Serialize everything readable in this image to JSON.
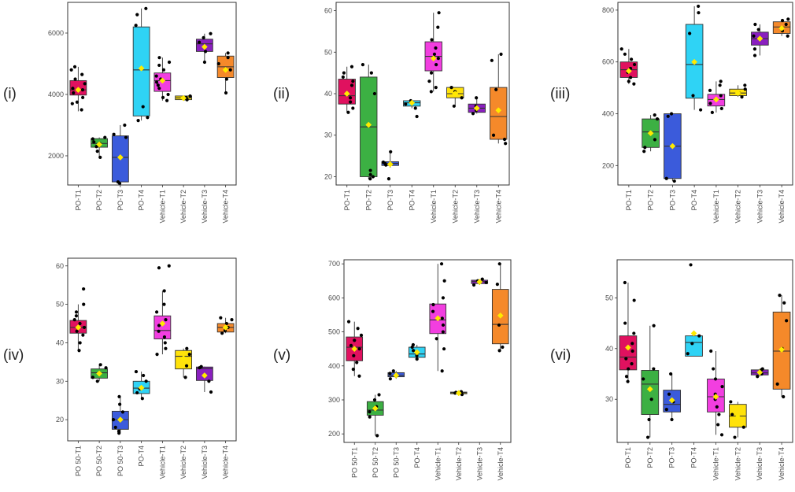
{
  "colors": {
    "T1": "#e0115f",
    "T2": "#3cb043",
    "T3": "#3b5bdb",
    "T4": "#2fd3f5",
    "VT1": "#f23ee0",
    "VT2": "#ffe20a",
    "VT3": "#8a1fbf",
    "VT4": "#f5892a",
    "mean": "#ffea00"
  },
  "chart_data": [
    {
      "type": "box",
      "label": "(i)",
      "categories": [
        "PO-T1",
        "PO-T2",
        "PO-T3",
        "PO-T4",
        "Vehicle-T1",
        "Vehicle-T2",
        "Vehicle-T3",
        "Vehicle-T4"
      ],
      "colorKeys": [
        "T1",
        "T2",
        "T3",
        "T4",
        "VT1",
        "VT2",
        "VT3",
        "VT4"
      ],
      "yticks": [
        2000,
        4000,
        6000
      ],
      "ylim": [
        1050,
        7000
      ],
      "boxes": [
        {
          "q1": 3980,
          "median": 4150,
          "q3": 4450,
          "low": 3450,
          "high": 4900,
          "mean": 4150,
          "points": [
            3500,
            3700,
            3750,
            3900,
            4050,
            4150,
            4200,
            4350,
            4500,
            4650,
            4800,
            4900
          ]
        },
        {
          "q1": 2280,
          "median": 2400,
          "q3": 2560,
          "low": 1950,
          "high": 2600,
          "mean": 2370,
          "points": [
            1950,
            2150,
            2300,
            2400,
            2450,
            2550,
            2600
          ]
        },
        {
          "q1": 1150,
          "median": 1950,
          "q3": 2650,
          "low": 1100,
          "high": 3000,
          "mean": 1950,
          "points": [
            1100,
            1150,
            2600,
            2700,
            3000
          ]
        },
        {
          "q1": 3300,
          "median": 4800,
          "q3": 6200,
          "low": 3150,
          "high": 6800,
          "mean": 4850,
          "points": [
            3150,
            3250,
            3600,
            6250,
            6600,
            6800
          ]
        },
        {
          "q1": 4100,
          "median": 4450,
          "q3": 4700,
          "low": 3800,
          "high": 5200,
          "mean": 4450,
          "points": [
            3800,
            3900,
            4000,
            4200,
            4300,
            4400,
            4500,
            4600,
            4800,
            4950,
            5050,
            5200
          ]
        },
        {
          "q1": 3830,
          "median": 3890,
          "q3": 3950,
          "low": 3820,
          "high": 3960,
          "mean": 3880,
          "points": [
            3830,
            3860,
            3900,
            3950
          ]
        },
        {
          "q1": 5400,
          "median": 5650,
          "q3": 5800,
          "low": 5050,
          "high": 5980,
          "mean": 5550,
          "points": [
            5050,
            5400,
            5700,
            5850,
            5980
          ]
        },
        {
          "q1": 4550,
          "median": 4900,
          "q3": 5250,
          "low": 4050,
          "high": 5350,
          "mean": 4800,
          "points": [
            4050,
            4500,
            4800,
            5000,
            5200,
            5350
          ]
        }
      ]
    },
    {
      "type": "box",
      "label": "(ii)",
      "categories": [
        "PO-T1",
        "PO-T2",
        "PO-T3",
        "PO-T4",
        "Vehicle-T1",
        "Vehicle-T2",
        "Vehicle-T3",
        "Vehicle-T4"
      ],
      "colorKeys": [
        "T1",
        "T2",
        "T3",
        "T4",
        "VT1",
        "VT2",
        "VT3",
        "VT4"
      ],
      "yticks": [
        20,
        30,
        40,
        50,
        60
      ],
      "ylim": [
        18,
        62
      ],
      "boxes": [
        {
          "q1": 37.5,
          "median": 39.5,
          "q3": 43.5,
          "low": 35.5,
          "high": 46.5,
          "mean": 40,
          "points": [
            35.5,
            36.5,
            38,
            39,
            40,
            42,
            43,
            44,
            45,
            46.5
          ]
        },
        {
          "q1": 20,
          "median": 32,
          "q3": 44,
          "low": 19.5,
          "high": 47,
          "mean": 32.5,
          "points": [
            19.5,
            20,
            20.5,
            21.5,
            40,
            45,
            47
          ]
        },
        {
          "q1": 22.7,
          "median": 23.2,
          "q3": 23.6,
          "low": 22.2,
          "high": 26,
          "mean": 23,
          "points": [
            19.5,
            22.8,
            23.2,
            23.5,
            26
          ]
        },
        {
          "q1": 37,
          "median": 37.8,
          "q3": 38.3,
          "low": 36.5,
          "high": 38.5,
          "mean": 37.8,
          "points": [
            34.5,
            36.5,
            37.5,
            38.3
          ]
        },
        {
          "q1": 45.5,
          "median": 49,
          "q3": 52.5,
          "low": 40.5,
          "high": 59.5,
          "mean": 48.5,
          "points": [
            40.5,
            41.5,
            43,
            45,
            47,
            48.5,
            49.5,
            51,
            53,
            56,
            59.5
          ]
        },
        {
          "q1": 39,
          "median": 40,
          "q3": 41.5,
          "low": 37,
          "high": 41.5,
          "mean": 40,
          "points": [
            37,
            39,
            40.5,
            41.5
          ]
        },
        {
          "q1": 35.5,
          "median": 36.5,
          "q3": 37.5,
          "low": 35.2,
          "high": 39,
          "mean": 36.5,
          "points": [
            35.2,
            36,
            37,
            39
          ]
        },
        {
          "q1": 29,
          "median": 34.5,
          "q3": 41.5,
          "low": 28,
          "high": 49.5,
          "mean": 36,
          "points": [
            28,
            29,
            30,
            41,
            48,
            49.5
          ]
        }
      ]
    },
    {
      "type": "box",
      "label": "(iii)",
      "categories": [
        "PO-T1",
        "PO-T2",
        "PO-T3",
        "PO-T4",
        "Vehicle-T1",
        "Vehicle-T2",
        "Vehicle-T3",
        "Vehicle-T4"
      ],
      "colorKeys": [
        "T1",
        "T2",
        "T3",
        "T4",
        "VT1",
        "VT2",
        "VT3",
        "VT4"
      ],
      "yticks": [
        200,
        400,
        600,
        800
      ],
      "ylim": [
        125,
        830
      ],
      "boxes": [
        {
          "q1": 540,
          "median": 570,
          "q3": 600,
          "low": 515,
          "high": 650,
          "mean": 565,
          "points": [
            515,
            525,
            540,
            560,
            575,
            590,
            610,
            630,
            650
          ]
        },
        {
          "q1": 270,
          "median": 330,
          "q3": 380,
          "low": 255,
          "high": 395,
          "mean": 325,
          "points": [
            255,
            270,
            300,
            380,
            395
          ]
        },
        {
          "q1": 150,
          "median": 275,
          "q3": 400,
          "low": 140,
          "high": 400,
          "mean": 275,
          "points": [
            140,
            150,
            390,
            400
          ]
        },
        {
          "q1": 460,
          "median": 590,
          "q3": 745,
          "low": 415,
          "high": 815,
          "mean": 600,
          "points": [
            415,
            470,
            710,
            790,
            815
          ]
        },
        {
          "q1": 430,
          "median": 455,
          "q3": 475,
          "low": 405,
          "high": 525,
          "mean": 455,
          "points": [
            405,
            420,
            440,
            455,
            470,
            490,
            510,
            525
          ]
        },
        {
          "q1": 470,
          "median": 480,
          "q3": 495,
          "low": 465,
          "high": 510,
          "mean": 480,
          "points": [
            465,
            480,
            495,
            510
          ]
        },
        {
          "q1": 665,
          "median": 690,
          "q3": 715,
          "low": 625,
          "high": 745,
          "mean": 690,
          "points": [
            625,
            650,
            700,
            725,
            745
          ]
        },
        {
          "q1": 710,
          "median": 735,
          "q3": 755,
          "low": 700,
          "high": 765,
          "mean": 730,
          "points": [
            700,
            720,
            745,
            760,
            765
          ]
        }
      ]
    },
    {
      "type": "box",
      "label": "(iv)",
      "categories": [
        "PO 50-T1",
        "PO 50-T2",
        "PO 50-T3",
        "PO-T4",
        "Vehicle-T1",
        "Vehicle-T2",
        "Vehicle-T3",
        "Vehicle-T4"
      ],
      "colorKeys": [
        "T1",
        "T2",
        "T3",
        "T4",
        "VT1",
        "VT2",
        "VT3",
        "VT4"
      ],
      "yticks": [
        20,
        30,
        40,
        50,
        60
      ],
      "ylim": [
        14.5,
        62
      ],
      "boxes": [
        {
          "q1": 42.5,
          "median": 44,
          "q3": 45.8,
          "low": 38,
          "high": 50,
          "mean": 44,
          "points": [
            38,
            40,
            42,
            43,
            44,
            45,
            46,
            47,
            48,
            50,
            54
          ]
        },
        {
          "q1": 30.8,
          "median": 32.2,
          "q3": 33.2,
          "low": 30,
          "high": 34.3,
          "mean": 32,
          "points": [
            30,
            31,
            32.2,
            33.5,
            34.3
          ]
        },
        {
          "q1": 17.5,
          "median": 20,
          "q3": 22.2,
          "low": 16.5,
          "high": 26,
          "mean": 20,
          "points": [
            16.5,
            17,
            18,
            20,
            22,
            24,
            26
          ]
        },
        {
          "q1": 26.8,
          "median": 28.2,
          "q3": 30,
          "low": 25.5,
          "high": 32.5,
          "mean": 28.3,
          "points": [
            25.5,
            27,
            28,
            30,
            31.5,
            32.5
          ]
        },
        {
          "q1": 41,
          "median": 43.2,
          "q3": 47,
          "low": 37,
          "high": 53.5,
          "mean": 45,
          "points": [
            37,
            38.5,
            40,
            41.5,
            43,
            44.5,
            46,
            48,
            50,
            53.5,
            59.5,
            60
          ]
        },
        {
          "q1": 33.2,
          "median": 36.5,
          "q3": 38,
          "low": 31,
          "high": 38.5,
          "mean": 36,
          "points": [
            31,
            34,
            37,
            38.5
          ]
        },
        {
          "q1": 30.2,
          "median": 33.3,
          "q3": 33.7,
          "low": 27.2,
          "high": 33.8,
          "mean": 31.5,
          "points": [
            27.2,
            30,
            33.5,
            33.8
          ]
        },
        {
          "q1": 42.8,
          "median": 44,
          "q3": 45,
          "low": 42.5,
          "high": 46.5,
          "mean": 44,
          "points": [
            42.5,
            43.2,
            44,
            45,
            46,
            46.5
          ]
        }
      ]
    },
    {
      "type": "box",
      "label": "(v)",
      "categories": [
        "PO 50-T1",
        "PO 50-T2",
        "PO 50-T3",
        "PO-T4",
        "Vehicle-T1",
        "Vehicle-T2",
        "Vehicle-T3",
        "Vehicle-T4"
      ],
      "colorKeys": [
        "T1",
        "T2",
        "T3",
        "T4",
        "VT1",
        "VT2",
        "VT3",
        "VT4"
      ],
      "yticks": [
        200,
        300,
        400,
        500,
        600,
        700
      ],
      "ylim": [
        175,
        712
      ],
      "boxes": [
        {
          "q1": 415,
          "median": 455,
          "q3": 485,
          "low": 370,
          "high": 530,
          "mean": 450,
          "points": [
            370,
            390,
            410,
            430,
            450,
            460,
            475,
            490,
            510,
            530
          ]
        },
        {
          "q1": 255,
          "median": 270,
          "q3": 295,
          "low": 195,
          "high": 315,
          "mean": 275,
          "points": [
            195,
            250,
            265,
            280,
            300,
            315
          ]
        },
        {
          "q1": 368,
          "median": 372,
          "q3": 380,
          "low": 362,
          "high": 385,
          "mean": 372,
          "points": [
            362,
            370,
            378,
            385
          ]
        },
        {
          "q1": 425,
          "median": 435,
          "q3": 455,
          "low": 420,
          "high": 462,
          "mean": 440,
          "points": [
            420,
            430,
            445,
            455,
            462
          ]
        },
        {
          "q1": 495,
          "median": 535,
          "q3": 582,
          "low": 385,
          "high": 700,
          "mean": 540,
          "points": [
            385,
            450,
            480,
            500,
            520,
            540,
            560,
            580,
            600,
            650,
            700
          ]
        },
        {
          "q1": 318,
          "median": 321,
          "q3": 323,
          "low": 316,
          "high": 324,
          "mean": 320,
          "points": [
            316,
            320,
            322,
            324
          ]
        },
        {
          "q1": 642,
          "median": 648,
          "q3": 652,
          "low": 638,
          "high": 655,
          "mean": 647,
          "points": [
            638,
            645,
            650,
            655
          ]
        },
        {
          "q1": 465,
          "median": 522,
          "q3": 625,
          "low": 445,
          "high": 700,
          "mean": 548,
          "points": [
            445,
            455,
            520,
            640,
            700
          ]
        }
      ]
    },
    {
      "type": "box",
      "label": "(vi)",
      "categories": [
        "PO-T1",
        "PO-T2",
        "PO-T3",
        "PO-T4",
        "Vehicle-T1",
        "Vehicle-T2",
        "Vehicle-T3",
        "Vehicle-T4"
      ],
      "colorKeys": [
        "T1",
        "T2",
        "T3",
        "T4",
        "VT1",
        "VT2",
        "VT3",
        "VT4"
      ],
      "yticks": [
        30,
        40,
        50
      ],
      "ylim": [
        21.5,
        57.5
      ],
      "boxes": [
        {
          "q1": 35.8,
          "median": 38.3,
          "q3": 42.5,
          "low": 33.5,
          "high": 53,
          "mean": 40.2,
          "points": [
            33.5,
            34.5,
            36,
            37,
            38,
            39.5,
            41,
            43,
            45,
            49.5,
            53
          ]
        },
        {
          "q1": 27,
          "median": 33,
          "q3": 35.7,
          "low": 22.5,
          "high": 44.5,
          "mean": 32,
          "points": [
            22.5,
            26,
            30,
            34,
            36,
            44.5
          ]
        },
        {
          "q1": 27.5,
          "median": 29,
          "q3": 31.8,
          "low": 26,
          "high": 35,
          "mean": 29.8,
          "points": [
            26,
            28,
            29.5,
            31,
            35
          ]
        },
        {
          "q1": 38.5,
          "median": 41.2,
          "q3": 42.5,
          "low": 38.5,
          "high": 42.6,
          "mean": 43,
          "points": [
            39,
            41,
            42.5,
            56.5
          ]
        },
        {
          "q1": 27.5,
          "median": 30.5,
          "q3": 34,
          "low": 23,
          "high": 39.5,
          "mean": 30.5,
          "points": [
            23,
            25,
            27,
            28.5,
            30,
            31,
            32.5,
            34,
            36,
            39.5
          ]
        },
        {
          "q1": 24.5,
          "median": 26.7,
          "q3": 29,
          "low": 22.5,
          "high": 29.5,
          "mean": 26.5,
          "points": [
            22.5,
            24.5,
            27,
            29.5
          ]
        },
        {
          "q1": 34.8,
          "median": 35.2,
          "q3": 35.8,
          "low": 34.5,
          "high": 36,
          "mean": 35.3,
          "points": [
            34.5,
            35,
            35.8,
            36
          ]
        },
        {
          "q1": 32,
          "median": 39.5,
          "q3": 47.2,
          "low": 30.5,
          "high": 50.5,
          "mean": 39.8,
          "points": [
            30.5,
            33,
            40,
            45.5,
            49,
            50.5
          ]
        }
      ]
    }
  ]
}
